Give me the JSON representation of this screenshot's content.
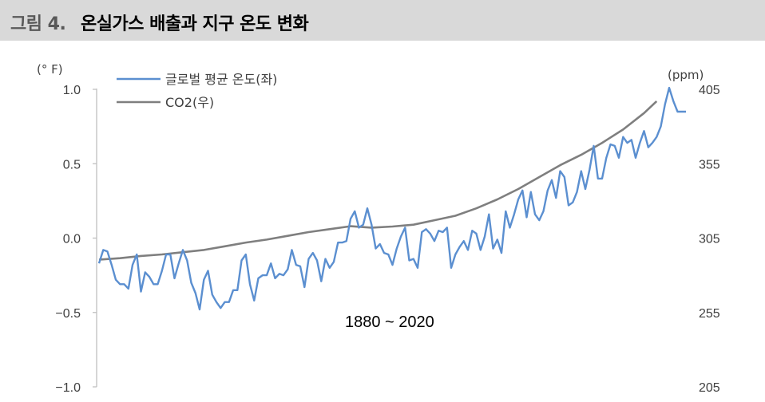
{
  "header": {
    "figure_label": "그림 4.",
    "title": "온실가스 배출과 지구 온도 변화"
  },
  "chart_data": {
    "type": "line",
    "left_axis": {
      "unit": "(° F)",
      "ticks": [
        "1.0",
        "0.5",
        "0.0",
        "−0.5",
        "−1.0"
      ],
      "tick_values": [
        1.0,
        0.5,
        0.0,
        -0.5,
        -1.0
      ],
      "range": [
        -1.0,
        1.0
      ]
    },
    "right_axis": {
      "unit": "(ppm)",
      "ticks": [
        "405",
        "355",
        "305",
        "255",
        "205"
      ],
      "tick_values": [
        405,
        355,
        305,
        255,
        205
      ],
      "range": [
        205,
        405
      ]
    },
    "x_range": [
      1880,
      2020
    ],
    "annotation": "1880 ~ 2020",
    "colors": {
      "temperature": "#5b8fd0",
      "co2": "#7f7f7f",
      "axis": "#bfbfbf"
    },
    "series": [
      {
        "name": "글로벌 평균 온도(좌)",
        "axis": "left",
        "x": [
          1880,
          1881,
          1882,
          1883,
          1884,
          1885,
          1886,
          1887,
          1888,
          1889,
          1890,
          1891,
          1892,
          1893,
          1894,
          1895,
          1896,
          1897,
          1898,
          1899,
          1900,
          1901,
          1902,
          1903,
          1904,
          1905,
          1906,
          1907,
          1908,
          1909,
          1910,
          1911,
          1912,
          1913,
          1914,
          1915,
          1916,
          1917,
          1918,
          1919,
          1920,
          1921,
          1922,
          1923,
          1924,
          1925,
          1926,
          1927,
          1928,
          1929,
          1930,
          1931,
          1932,
          1933,
          1934,
          1935,
          1936,
          1937,
          1938,
          1939,
          1940,
          1941,
          1942,
          1943,
          1944,
          1945,
          1946,
          1947,
          1948,
          1949,
          1950,
          1951,
          1952,
          1953,
          1954,
          1955,
          1956,
          1957,
          1958,
          1959,
          1960,
          1961,
          1962,
          1963,
          1964,
          1965,
          1966,
          1967,
          1968,
          1969,
          1970,
          1971,
          1972,
          1973,
          1974,
          1975,
          1976,
          1977,
          1978,
          1979,
          1980,
          1981,
          1982,
          1983,
          1984,
          1985,
          1986,
          1987,
          1988,
          1989,
          1990,
          1991,
          1992,
          1993,
          1994,
          1995,
          1996,
          1997,
          1998,
          1999,
          2000,
          2001,
          2002,
          2003,
          2004,
          2005,
          2006,
          2007,
          2008,
          2009,
          2010,
          2011,
          2012,
          2013,
          2014,
          2015,
          2016,
          2017,
          2018,
          2019,
          2020
        ],
        "values": [
          -0.17,
          -0.08,
          -0.09,
          -0.18,
          -0.28,
          -0.31,
          -0.31,
          -0.34,
          -0.18,
          -0.11,
          -0.36,
          -0.23,
          -0.26,
          -0.31,
          -0.31,
          -0.22,
          -0.11,
          -0.11,
          -0.27,
          -0.17,
          -0.08,
          -0.15,
          -0.3,
          -0.37,
          -0.48,
          -0.28,
          -0.22,
          -0.38,
          -0.43,
          -0.47,
          -0.43,
          -0.43,
          -0.35,
          -0.35,
          -0.15,
          -0.11,
          -0.31,
          -0.42,
          -0.27,
          -0.25,
          -0.25,
          -0.17,
          -0.27,
          -0.24,
          -0.25,
          -0.21,
          -0.08,
          -0.18,
          -0.19,
          -0.33,
          -0.14,
          -0.1,
          -0.15,
          -0.29,
          -0.14,
          -0.2,
          -0.16,
          -0.03,
          -0.03,
          -0.02,
          0.13,
          0.18,
          0.07,
          0.09,
          0.2,
          0.09,
          -0.07,
          -0.04,
          -0.1,
          -0.11,
          -0.18,
          -0.07,
          0.01,
          0.07,
          -0.15,
          -0.14,
          -0.2,
          0.04,
          0.06,
          0.03,
          -0.02,
          0.05,
          0.04,
          0.07,
          -0.2,
          -0.11,
          -0.06,
          -0.02,
          -0.08,
          0.05,
          0.03,
          -0.08,
          0.01,
          0.16,
          -0.07,
          -0.01,
          -0.1,
          0.18,
          0.07,
          0.16,
          0.26,
          0.32,
          0.14,
          0.31,
          0.16,
          0.12,
          0.18,
          0.32,
          0.39,
          0.27,
          0.45,
          0.41,
          0.22,
          0.24,
          0.31,
          0.45,
          0.33,
          0.46,
          0.62,
          0.4,
          0.4,
          0.54,
          0.63,
          0.62,
          0.54,
          0.68,
          0.64,
          0.66,
          0.54,
          0.64,
          0.72,
          0.61,
          0.64,
          0.68,
          0.75,
          0.9,
          1.01,
          0.92,
          0.85,
          0.85,
          0.85
        ]
      },
      {
        "name": "CO2(우)",
        "axis": "right",
        "x": [
          1880,
          1885,
          1890,
          1895,
          1900,
          1905,
          1910,
          1915,
          1920,
          1925,
          1930,
          1935,
          1940,
          1945,
          1950,
          1955,
          1960,
          1965,
          1970,
          1975,
          1980,
          1985,
          1990,
          1995,
          2000,
          2005,
          2010,
          2013
        ],
        "values": [
          290.5,
          291.5,
          293,
          294,
          295.5,
          297,
          299.5,
          302,
          304,
          306.5,
          309,
          311,
          313,
          312,
          312.8,
          314,
          317,
          320,
          325,
          331,
          338,
          346,
          354,
          361,
          369,
          378,
          389,
          397
        ]
      }
    ]
  }
}
